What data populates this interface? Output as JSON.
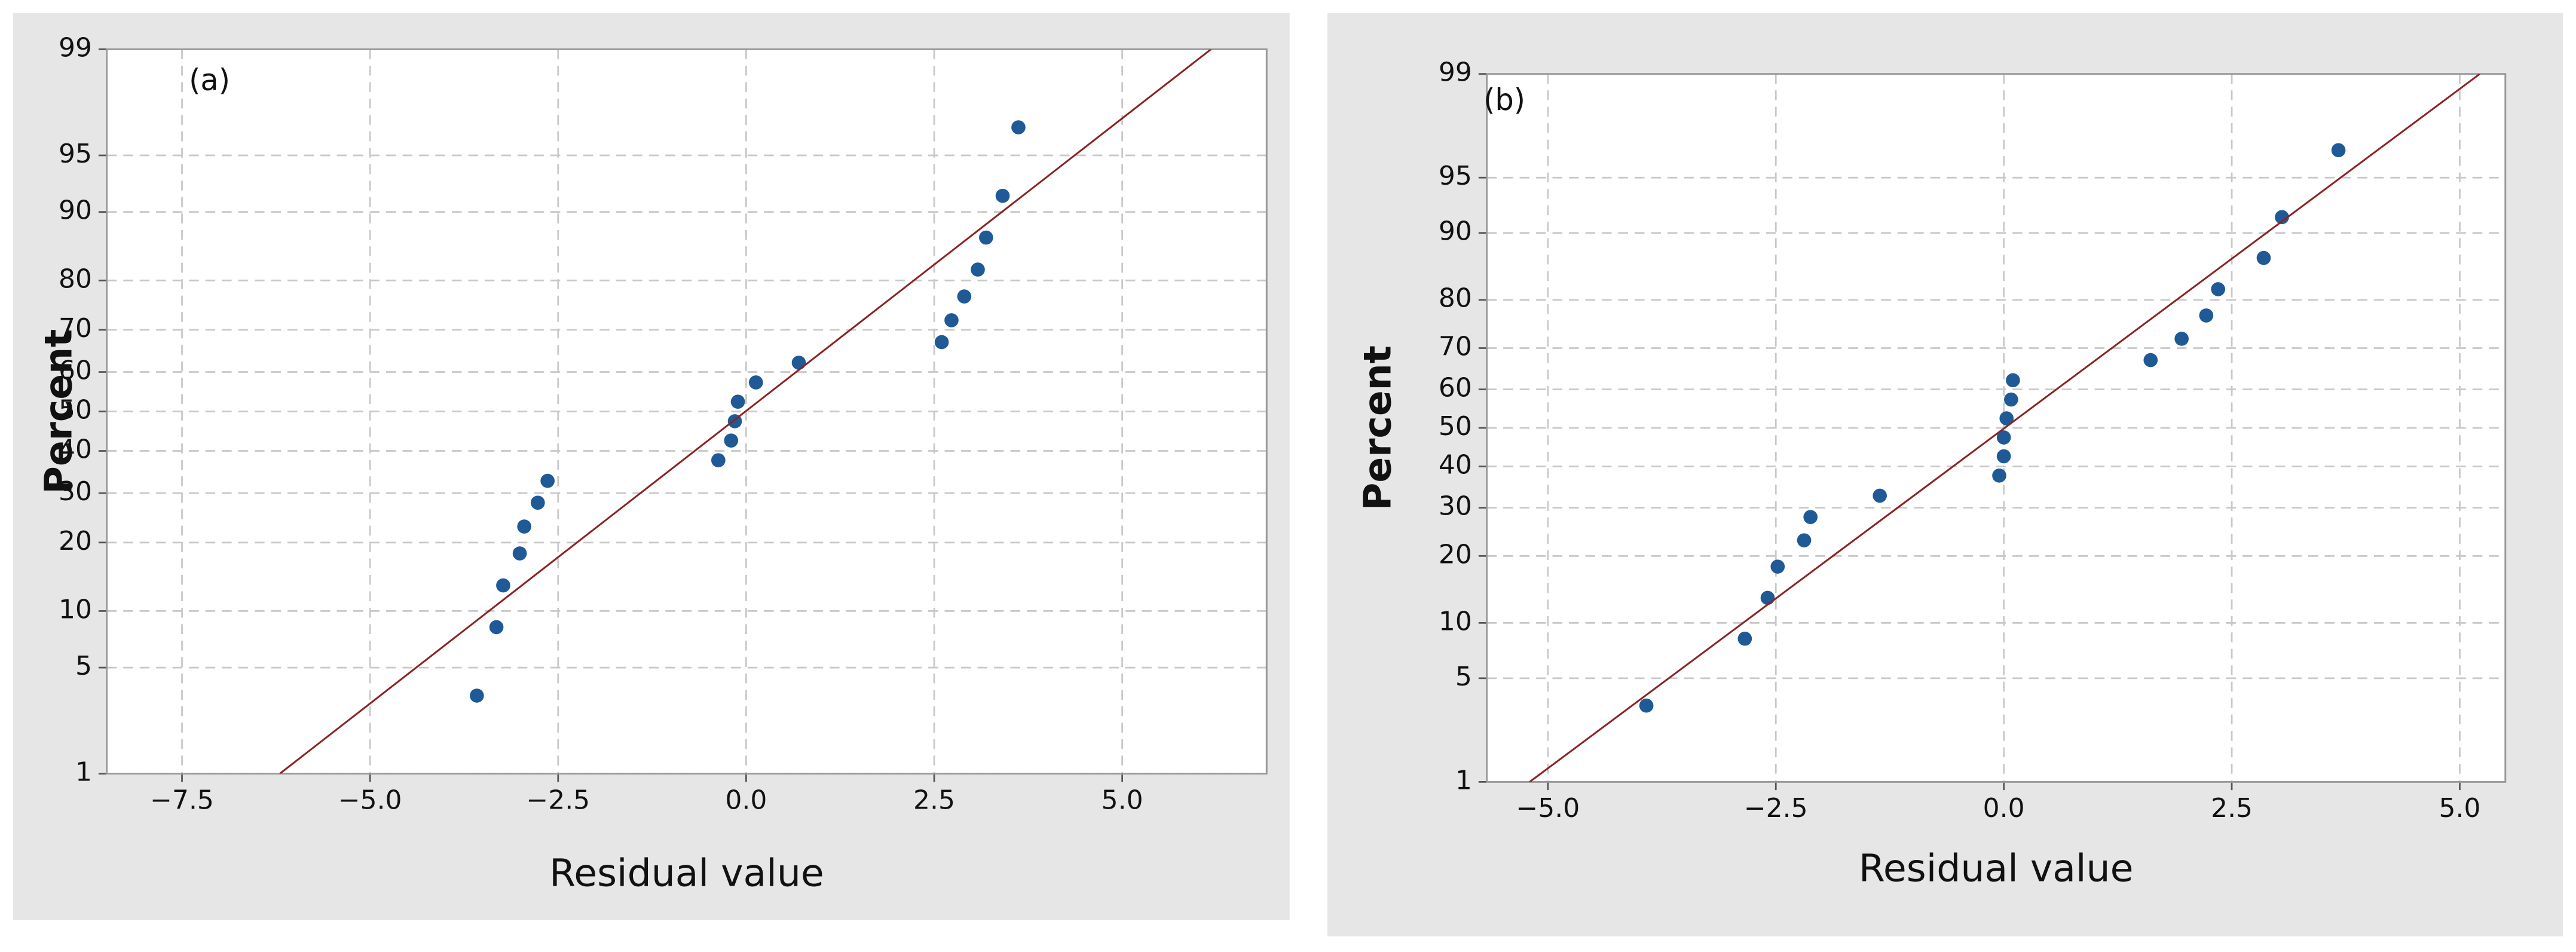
{
  "chart_data": [
    {
      "type": "scatter",
      "panel_label": "(a)",
      "xlabel": "Residual value",
      "ylabel": "Percent",
      "yscale": "normal-probability",
      "grid": true,
      "xlim": [
        -8.5,
        6.92
      ],
      "ylim": [
        1,
        99
      ],
      "xticks": [
        {
          "value": -7.5,
          "label": "−7.5"
        },
        {
          "value": -5,
          "label": "−5.0"
        },
        {
          "value": -2.5,
          "label": "−2.5"
        },
        {
          "value": 0,
          "label": "0.0"
        },
        2.5,
        {
          "value": 5,
          "label": "5.0"
        }
      ],
      "yticks": [
        1,
        5,
        10,
        20,
        30,
        40,
        50,
        60,
        70,
        80,
        90,
        95,
        99
      ],
      "series": [
        {
          "style": "markers",
          "color": "#1f5a96",
          "x": [
            -3.58,
            -3.32,
            -3.23,
            -3.01,
            -2.95,
            -2.77,
            -2.64,
            -0.37,
            -0.2,
            -0.15,
            -0.11,
            0.13,
            0.7,
            2.6,
            2.73,
            2.9,
            3.08,
            3.19,
            3.41,
            3.62
          ],
          "values": [
            3.4,
            8.3,
            13.2,
            18.1,
            23,
            27.9,
            32.8,
            37.7,
            42.6,
            47.5,
            52.5,
            57.4,
            62.3,
            67.2,
            72.1,
            77,
            81.9,
            86.8,
            91.7,
            96.6
          ]
        },
        {
          "style": "line",
          "color": "#8b2323",
          "x": [
            -6.2,
            6.18
          ],
          "values": [
            1,
            99
          ]
        }
      ]
    },
    {
      "type": "scatter",
      "panel_label": "(b)",
      "xlabel": "Residual value",
      "ylabel": "Percent",
      "yscale": "normal-probability",
      "grid": true,
      "xlim": [
        -5.67,
        5.5
      ],
      "ylim": [
        1,
        99
      ],
      "xticks": [
        {
          "value": -5,
          "label": "−5.0"
        },
        {
          "value": -2.5,
          "label": "−2.5"
        },
        {
          "value": 0,
          "label": "0.0"
        },
        2.5,
        {
          "value": 5,
          "label": "5.0"
        }
      ],
      "yticks": [
        1,
        5,
        10,
        20,
        30,
        40,
        50,
        60,
        70,
        80,
        90,
        95,
        99
      ],
      "series": [
        {
          "style": "markers",
          "color": "#1f5a96",
          "x": [
            -3.92,
            -2.84,
            -2.59,
            -2.48,
            -2.19,
            -2.12,
            -1.36,
            -0.05,
            0,
            0,
            0.03,
            0.08,
            0.1,
            1.61,
            1.95,
            2.22,
            2.35,
            2.85,
            3.05,
            3.67
          ],
          "values": [
            3.4,
            8.3,
            13.2,
            18.1,
            23,
            27.9,
            32.8,
            37.7,
            42.6,
            47.5,
            52.5,
            57.4,
            62.3,
            67.2,
            72.1,
            77,
            81.9,
            86.8,
            91.7,
            96.6
          ]
        },
        {
          "style": "line",
          "color": "#8b2323",
          "x": [
            -5.2,
            5.22
          ],
          "values": [
            1,
            99
          ]
        }
      ]
    }
  ]
}
